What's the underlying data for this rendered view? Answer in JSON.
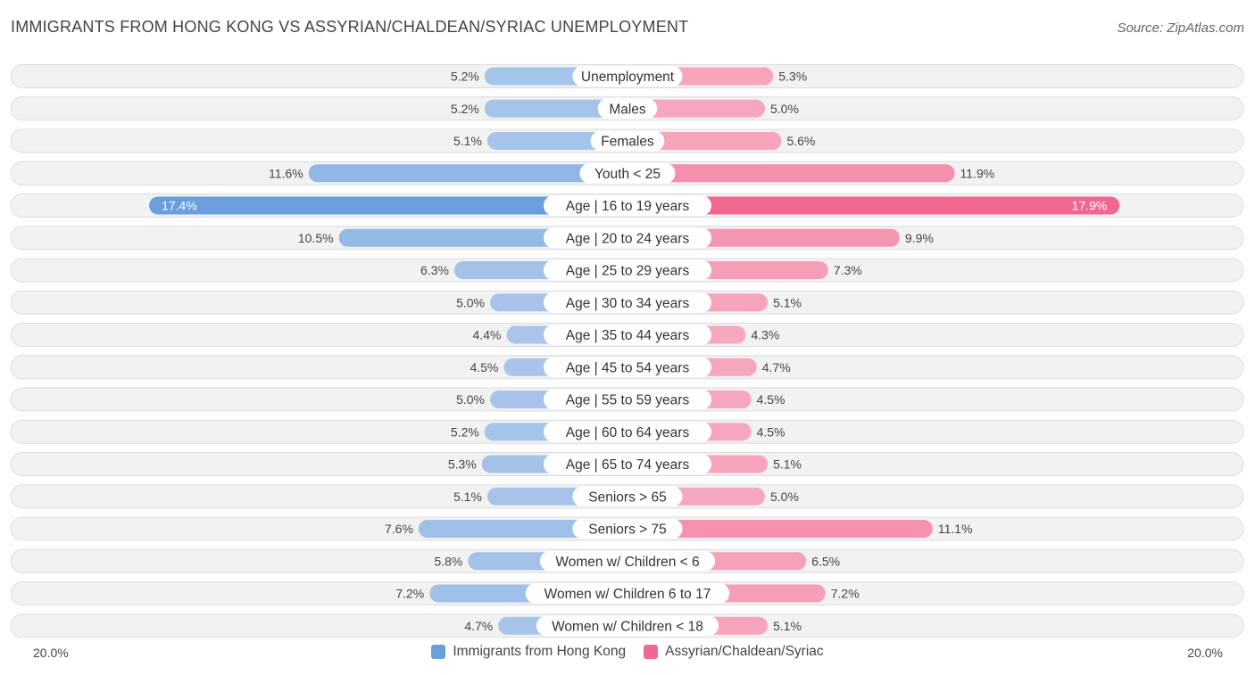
{
  "chart_data": {
    "type": "bar",
    "orientation": "horizontal-diverging",
    "title": "IMMIGRANTS FROM HONG KONG VS ASSYRIAN/CHALDEAN/SYRIAC UNEMPLOYMENT",
    "source": "Source: ZipAtlas.com",
    "axis_max": 20.0,
    "axis_left_label": "20.0%",
    "axis_right_label": "20.0%",
    "legend_position": "bottom-center",
    "categories": [
      "Unemployment",
      "Males",
      "Females",
      "Youth < 25",
      "Age | 16 to 19 years",
      "Age | 20 to 24 years",
      "Age | 25 to 29 years",
      "Age | 30 to 34 years",
      "Age | 35 to 44 years",
      "Age | 45 to 54 years",
      "Age | 55 to 59 years",
      "Age | 60 to 64 years",
      "Age | 65 to 74 years",
      "Seniors > 65",
      "Seniors > 75",
      "Women w/ Children < 6",
      "Women w/ Children 6 to 17",
      "Women w/ Children < 18"
    ],
    "series": [
      {
        "name": "Immigrants from Hong Kong",
        "color": "#6a9fdc",
        "color_light": "#a9c6ea",
        "values": [
          5.2,
          5.2,
          5.1,
          11.6,
          17.4,
          10.5,
          6.3,
          5.0,
          4.4,
          4.5,
          5.0,
          5.2,
          5.3,
          5.1,
          7.6,
          5.8,
          7.2,
          4.7
        ],
        "labels": [
          "5.2%",
          "5.2%",
          "5.1%",
          "11.6%",
          "17.4%",
          "10.5%",
          "6.3%",
          "5.0%",
          "4.4%",
          "4.5%",
          "5.0%",
          "5.2%",
          "5.3%",
          "5.1%",
          "7.6%",
          "5.8%",
          "7.2%",
          "4.7%"
        ]
      },
      {
        "name": "Assyrian/Chaldean/Syriac",
        "color": "#f06890",
        "color_light": "#f6a9c0",
        "values": [
          5.3,
          5.0,
          5.6,
          11.9,
          17.9,
          9.9,
          7.3,
          5.1,
          4.3,
          4.7,
          4.5,
          4.5,
          5.1,
          5.0,
          11.1,
          6.5,
          7.2,
          5.1
        ],
        "labels": [
          "5.3%",
          "5.0%",
          "5.6%",
          "11.9%",
          "17.9%",
          "9.9%",
          "7.3%",
          "5.1%",
          "4.3%",
          "4.7%",
          "4.5%",
          "4.5%",
          "5.1%",
          "5.0%",
          "11.1%",
          "6.5%",
          "7.2%",
          "5.1%"
        ]
      }
    ]
  }
}
